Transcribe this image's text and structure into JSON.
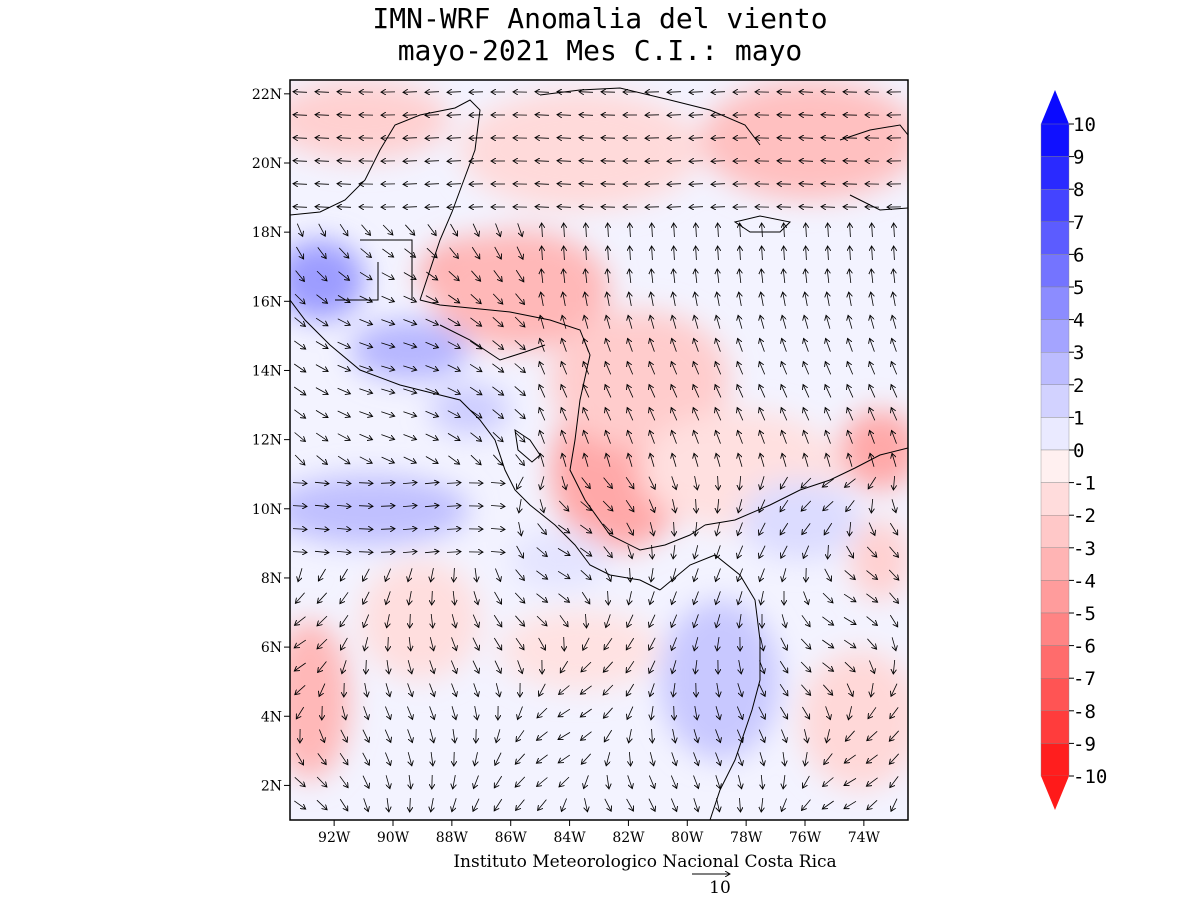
{
  "title_line1": "IMN-WRF Anomalia del viento",
  "title_line2": "mayo-2021 Mes C.I.: mayo",
  "footer": "Instituto Meteorologico Nacional Costa Rica",
  "reference_vector": {
    "value": "10"
  },
  "map": {
    "lon_range": [
      -93.5,
      -72.5
    ],
    "lat_range": [
      1,
      22.4
    ],
    "lat_ticks": [
      "22N",
      "20N",
      "18N",
      "16N",
      "14N",
      "12N",
      "10N",
      "8N",
      "6N",
      "4N",
      "2N"
    ],
    "lat_tick_values": [
      22,
      20,
      18,
      16,
      14,
      12,
      10,
      8,
      6,
      4,
      2
    ],
    "lon_ticks": [
      "92W",
      "90W",
      "88W",
      "86W",
      "84W",
      "82W",
      "80W",
      "78W",
      "76W",
      "74W"
    ],
    "lon_tick_values": [
      -92,
      -90,
      -88,
      -86,
      -84,
      -82,
      -80,
      -78,
      -76,
      -74
    ]
  },
  "colorbar": {
    "labels": [
      "10",
      "9",
      "8",
      "7",
      "6",
      "5",
      "4",
      "3",
      "2",
      "1",
      "0",
      "-1",
      "-2",
      "-3",
      "-4",
      "-5",
      "-6",
      "-7",
      "-8",
      "-9",
      "-10"
    ],
    "colors": [
      "#1010ff",
      "#2a2aff",
      "#4444ff",
      "#5c5cff",
      "#7474ff",
      "#8c8cff",
      "#a4a4ff",
      "#bcbcff",
      "#d2d2ff",
      "#eaeaff",
      "#fff0f0",
      "#ffdcdc",
      "#ffc8c8",
      "#ffb4b4",
      "#ff9c9c",
      "#ff8484",
      "#ff6c6c",
      "#ff5454",
      "#ff3c3c",
      "#ff1e1e"
    ],
    "top_arrow_color": "#0a0aff",
    "bottom_arrow_color": "#ff1a1a"
  }
}
